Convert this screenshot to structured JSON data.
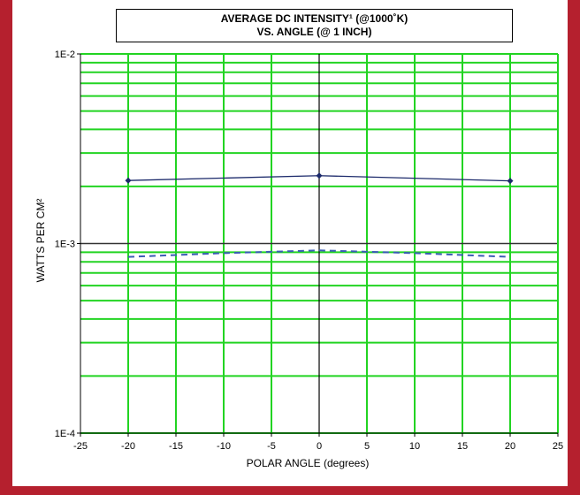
{
  "colors": {
    "background_border": "#b5202e",
    "grid": "#22d422",
    "axis": "#000000",
    "series_solid": "#1c2a6b",
    "series_dashed": "#3a5cb5"
  },
  "chart_data": {
    "type": "line",
    "title_line1": "AVERAGE DC INTENSITY¹ (@1000˚K)",
    "title_line2": "VS. ANGLE (@ 1 INCH)",
    "xlabel": "POLAR ANGLE (degrees)",
    "ylabel": "WATTS PER CM²",
    "xlim": [
      -25,
      25
    ],
    "ylim": [
      0.0001,
      0.01
    ],
    "yscale": "log",
    "grid": true,
    "x_ticks": [
      "-25",
      "-20",
      "-15",
      "-10",
      "-5",
      "0",
      "5",
      "10",
      "15",
      "20",
      "25"
    ],
    "y_ticks": [
      "1E-4",
      "1E-3",
      "1E-2"
    ],
    "series": [
      {
        "style": "solid",
        "markers": true,
        "x": [
          -20,
          0,
          20
        ],
        "y": [
          0.00215,
          0.00228,
          0.00214
        ]
      },
      {
        "style": "dashed",
        "markers": false,
        "x": [
          -20,
          -10,
          0,
          10,
          20
        ],
        "y": [
          0.00085,
          0.00089,
          0.00092,
          0.00089,
          0.00085
        ]
      }
    ]
  }
}
